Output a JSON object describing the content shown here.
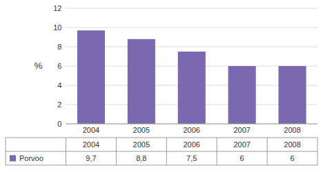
{
  "chart_data": {
    "type": "bar",
    "ylabel": "%",
    "categories": [
      "2004",
      "2005",
      "2006",
      "2007",
      "2008"
    ],
    "series": [
      {
        "name": "Porvoo",
        "color": "#7B68B0",
        "values": [
          9.7,
          8.8,
          7.5,
          6,
          6
        ],
        "value_labels": [
          "9,7",
          "8,8",
          "7,5",
          "6",
          "6"
        ]
      }
    ],
    "ylim": [
      0,
      12
    ],
    "yticks": [
      0,
      2,
      4,
      6,
      8,
      10,
      12
    ],
    "grid": true,
    "legend": "bottom"
  }
}
